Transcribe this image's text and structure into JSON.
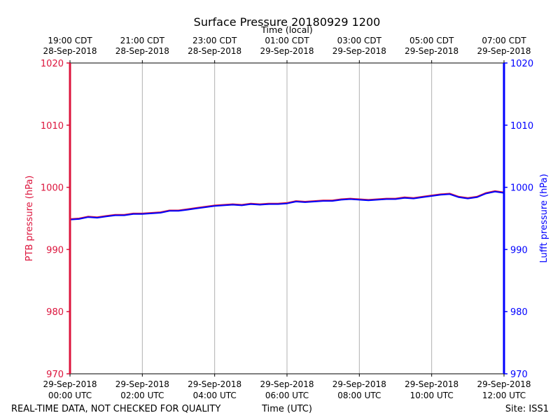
{
  "chart_data": {
    "type": "line",
    "title": "Surface Pressure 20180929 1200",
    "top_axis_label": "Time (local)",
    "xlabel": "Time (UTC)",
    "ylabel_left": "PTB pressure (hPa)",
    "ylabel_right": "Lufft pressure (hPa)",
    "footer_left": "REAL-TIME DATA, NOT CHECKED FOR QUALITY",
    "footer_right": "Site: ISS1",
    "xlim": [
      0,
      12
    ],
    "ylim": [
      970,
      1020
    ],
    "yticks": [
      "970",
      "980",
      "990",
      "1000",
      "1010",
      "1020"
    ],
    "grid": true,
    "x_ticks_utc": [
      {
        "date": "29-Sep-2018",
        "time": "00:00 UTC"
      },
      {
        "date": "29-Sep-2018",
        "time": "02:00 UTC"
      },
      {
        "date": "29-Sep-2018",
        "time": "04:00 UTC"
      },
      {
        "date": "29-Sep-2018",
        "time": "06:00 UTC"
      },
      {
        "date": "29-Sep-2018",
        "time": "08:00 UTC"
      },
      {
        "date": "29-Sep-2018",
        "time": "10:00 UTC"
      },
      {
        "date": "29-Sep-2018",
        "time": "12:00 UTC"
      }
    ],
    "x_ticks_local": [
      {
        "time": "19:00 CDT",
        "date": "28-Sep-2018"
      },
      {
        "time": "21:00 CDT",
        "date": "28-Sep-2018"
      },
      {
        "time": "23:00 CDT",
        "date": "28-Sep-2018"
      },
      {
        "time": "01:00 CDT",
        "date": "29-Sep-2018"
      },
      {
        "time": "03:00 CDT",
        "date": "29-Sep-2018"
      },
      {
        "time": "05:00 CDT",
        "date": "29-Sep-2018"
      },
      {
        "time": "07:00 CDT",
        "date": "29-Sep-2018"
      }
    ],
    "colors": {
      "left_axis": "#dc143c",
      "right_axis": "#0000ff",
      "ptb": "#dc143c",
      "lufft": "#0000ff",
      "grid": "#b0b0b0"
    },
    "series": [
      {
        "name": "PTB",
        "color": "#dc143c",
        "x": [
          0,
          0.25,
          0.5,
          0.75,
          1.0,
          1.25,
          1.5,
          1.75,
          2.0,
          2.25,
          2.5,
          2.75,
          3.0,
          3.25,
          3.5,
          3.75,
          4.0,
          4.25,
          4.5,
          4.75,
          5.0,
          5.25,
          5.5,
          5.75,
          6.0,
          6.25,
          6.5,
          6.75,
          7.0,
          7.25,
          7.5,
          7.75,
          8.0,
          8.25,
          8.5,
          8.75,
          9.0,
          9.25,
          9.5,
          9.75,
          10.0,
          10.25,
          10.5,
          10.75,
          11.0,
          11.25,
          11.5,
          11.75,
          12.0
        ],
        "values": [
          994.9,
          995.0,
          995.3,
          995.2,
          995.4,
          995.6,
          995.6,
          995.8,
          995.8,
          995.9,
          996.0,
          996.3,
          996.3,
          996.5,
          996.7,
          996.9,
          997.1,
          997.2,
          997.3,
          997.2,
          997.4,
          997.3,
          997.4,
          997.4,
          997.5,
          997.8,
          997.7,
          997.8,
          997.9,
          997.9,
          998.1,
          998.2,
          998.1,
          998.0,
          998.1,
          998.2,
          998.2,
          998.4,
          998.3,
          998.5,
          998.7,
          998.9,
          999.0,
          998.5,
          998.3,
          998.5,
          999.1,
          999.4,
          999.2
        ]
      },
      {
        "name": "Lufft",
        "color": "#0000ff",
        "x": [
          0,
          0.25,
          0.5,
          0.75,
          1.0,
          1.25,
          1.5,
          1.75,
          2.0,
          2.25,
          2.5,
          2.75,
          3.0,
          3.25,
          3.5,
          3.75,
          4.0,
          4.25,
          4.5,
          4.75,
          5.0,
          5.25,
          5.5,
          5.75,
          6.0,
          6.25,
          6.5,
          6.75,
          7.0,
          7.25,
          7.5,
          7.75,
          8.0,
          8.25,
          8.5,
          8.75,
          9.0,
          9.25,
          9.5,
          9.75,
          10.0,
          10.25,
          10.5,
          10.75,
          11.0,
          11.25,
          11.5,
          11.75,
          12.0
        ],
        "values": [
          994.8,
          994.9,
          995.2,
          995.1,
          995.3,
          995.5,
          995.5,
          995.7,
          995.7,
          995.8,
          995.9,
          996.2,
          996.2,
          996.4,
          996.6,
          996.8,
          997.0,
          997.1,
          997.2,
          997.1,
          997.3,
          997.2,
          997.3,
          997.3,
          997.4,
          997.7,
          997.6,
          997.7,
          997.8,
          997.8,
          998.0,
          998.1,
          998.0,
          997.9,
          998.0,
          998.1,
          998.1,
          998.3,
          998.2,
          998.4,
          998.6,
          998.8,
          998.9,
          998.4,
          998.2,
          998.4,
          999.0,
          999.3,
          999.1
        ]
      }
    ]
  }
}
